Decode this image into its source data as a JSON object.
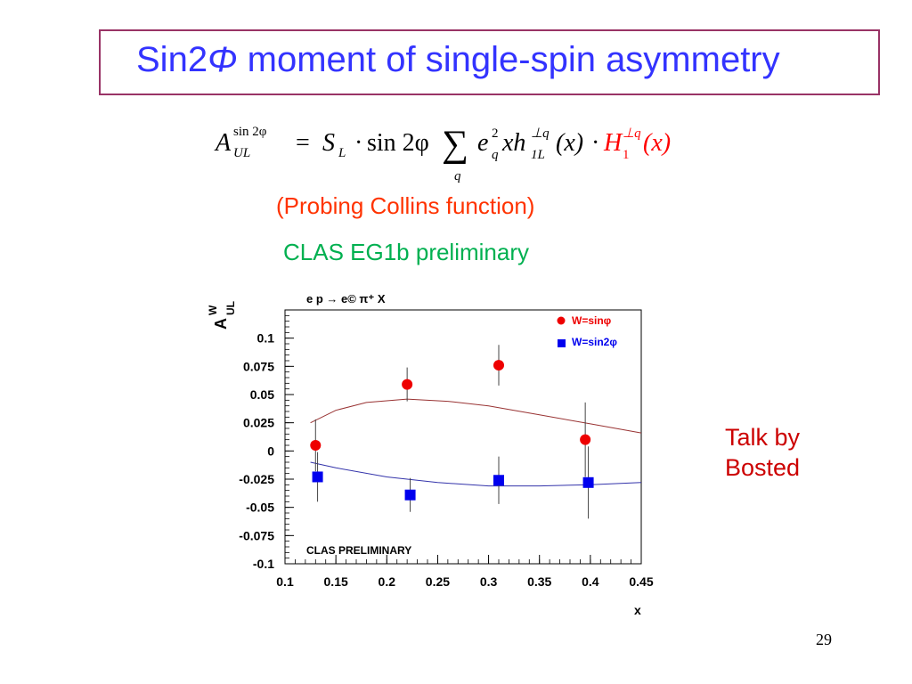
{
  "slide": {
    "title_prefix": "Sin2",
    "title_phi": "Φ",
    "title_suffix": " moment of single-spin asymmetry",
    "probing_text": "(Probing Collins function)",
    "clas_text": "CLAS EG1b preliminary",
    "talk_line1": "Talk by",
    "talk_line2": "Bosted",
    "page_number": "29"
  },
  "formula": {
    "lhs_base": "A",
    "lhs_sup": "sin 2φ",
    "lhs_sub": "UL",
    "eq": "=",
    "s": "S",
    "s_sub": "L",
    "dot1": "·",
    "sin": "sin 2φ",
    "sum": "∑",
    "sum_sub": "q",
    "e": "e",
    "e_sup": "2",
    "e_sub": "q",
    "xh": "xh",
    "h_sup": "⊥q",
    "h_sub": "1L",
    "args1": "(x)",
    "dot2": "·",
    "H": "H",
    "H_sup": "⊥q",
    "H_sub": "1",
    "args2": "(x)",
    "H_color": "#ff0000"
  },
  "chart_data": {
    "type": "scatter",
    "title": "e p → e© π⁺ X",
    "ylabel_main": "A",
    "ylabel_sup": "W",
    "ylabel_sub": "UL",
    "xlabel": "x",
    "annotation": "CLAS PRELIMINARY",
    "xlim": [
      0.1,
      0.45
    ],
    "ylim": [
      -0.1,
      0.125
    ],
    "x_ticks": [
      "0.1",
      "0.15",
      "0.2",
      "0.25",
      "0.3",
      "0.35",
      "0.4",
      "0.45"
    ],
    "y_ticks": [
      "0.1",
      "0.075",
      "0.05",
      "0.025",
      "0",
      "-0.025",
      "-0.05",
      "-0.075",
      "-0.1"
    ],
    "legend_position": "top-right",
    "series": [
      {
        "name": "W=sinφ",
        "marker": "circle",
        "color": "#ee0000",
        "points": [
          {
            "x": 0.13,
            "y": 0.005,
            "err": 0.023
          },
          {
            "x": 0.22,
            "y": 0.059,
            "err": 0.015
          },
          {
            "x": 0.31,
            "y": 0.076,
            "err": 0.018
          },
          {
            "x": 0.395,
            "y": 0.01,
            "err": 0.033
          }
        ]
      },
      {
        "name": "W=sin2φ",
        "marker": "square",
        "color": "#0000ee",
        "points": [
          {
            "x": 0.132,
            "y": -0.023,
            "err": 0.022
          },
          {
            "x": 0.223,
            "y": -0.039,
            "err": 0.015
          },
          {
            "x": 0.31,
            "y": -0.026,
            "err": 0.021
          },
          {
            "x": 0.398,
            "y": -0.028,
            "err": 0.032
          }
        ]
      }
    ],
    "curves": [
      {
        "color": "#993333",
        "points": [
          [
            0.125,
            0.025
          ],
          [
            0.15,
            0.036
          ],
          [
            0.18,
            0.043
          ],
          [
            0.22,
            0.046
          ],
          [
            0.26,
            0.044
          ],
          [
            0.3,
            0.04
          ],
          [
            0.35,
            0.032
          ],
          [
            0.4,
            0.024
          ],
          [
            0.45,
            0.016
          ]
        ]
      },
      {
        "color": "#3333aa",
        "points": [
          [
            0.125,
            -0.01
          ],
          [
            0.15,
            -0.015
          ],
          [
            0.2,
            -0.023
          ],
          [
            0.25,
            -0.028
          ],
          [
            0.3,
            -0.031
          ],
          [
            0.35,
            -0.031
          ],
          [
            0.4,
            -0.03
          ],
          [
            0.45,
            -0.028
          ]
        ]
      }
    ]
  }
}
